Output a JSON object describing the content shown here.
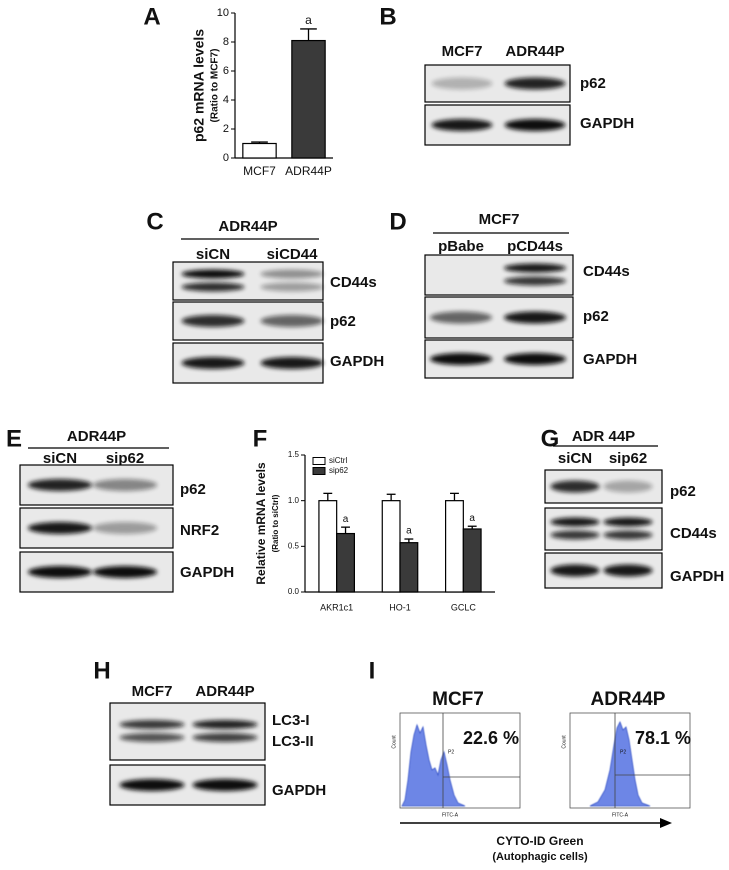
{
  "panel_labels": [
    "A",
    "B",
    "C",
    "D",
    "E",
    "F",
    "G",
    "H",
    "I"
  ],
  "chart_data": [
    {
      "type": "bar",
      "ylabel": "p62 mRNA levels",
      "ysublabel": "(Ratio to MCF7)",
      "categories": [
        "MCF7",
        "ADR44P"
      ],
      "values": [
        1,
        8.1
      ],
      "errors": [
        0.1,
        0.8
      ],
      "colors": [
        "#ffffff",
        "#3a3a3a"
      ],
      "annotations": [
        null,
        "a"
      ],
      "ylim": [
        0,
        10
      ],
      "yticks": [
        0,
        2,
        4,
        6,
        8,
        10
      ]
    },
    {
      "type": "grouped_bar",
      "ylabel": "Relative mRNA levels",
      "ysublabel": "(Ratio to siCtrl)",
      "categories": [
        "AKR1c1",
        "HO-1",
        "GCLC"
      ],
      "series": [
        {
          "name": "siCtrl",
          "color": "#ffffff",
          "values": [
            1,
            1,
            1
          ],
          "errors": [
            0.08,
            0.07,
            0.08
          ]
        },
        {
          "name": "sip62",
          "color": "#3a3a3a",
          "values": [
            0.64,
            0.54,
            0.69
          ],
          "errors": [
            0.07,
            0.04,
            0.03
          ],
          "annotations": [
            "a",
            "a",
            "a"
          ]
        }
      ],
      "ylim": [
        0,
        1.5
      ],
      "yticks": [
        {
          "value": 0,
          "label": "0.0"
        },
        {
          "value": 0.5,
          "label": "0.5"
        },
        {
          "value": 1,
          "label": "1.0"
        },
        {
          "value": 1.5,
          "label": "1.5"
        }
      ],
      "legend": "upper left"
    }
  ],
  "blots": {
    "B": {
      "lanes": [
        "MCF7",
        "ADR44P"
      ],
      "rows": [
        "p62",
        "GAPDH"
      ]
    },
    "C": {
      "group": "ADR44P",
      "lanes": [
        "siCN",
        "siCD44"
      ],
      "rows": [
        "CD44s",
        "p62",
        "GAPDH"
      ]
    },
    "D": {
      "group": "MCF7",
      "lanes": [
        "pBabe",
        "pCD44s"
      ],
      "rows": [
        "CD44s",
        "p62",
        "GAPDH"
      ]
    },
    "E": {
      "group": "ADR44P",
      "lanes": [
        "siCN",
        "sip62"
      ],
      "rows": [
        "p62",
        "NRF2",
        "GAPDH"
      ]
    },
    "G": {
      "group": "ADR 44P",
      "lanes": [
        "siCN",
        "sip62"
      ],
      "rows": [
        "p62",
        "CD44s",
        "GAPDH"
      ]
    },
    "H": {
      "lanes": [
        "MCF7",
        "ADR44P"
      ],
      "rows": [
        "LC3-I",
        "LC3-II",
        "GAPDH"
      ]
    }
  },
  "flow": {
    "panels": [
      {
        "title": "MCF7",
        "percent": "22.6 %",
        "gate": "P2"
      },
      {
        "title": "ADR44P",
        "percent": "78.1 %",
        "gate": "P2"
      }
    ],
    "y_axis": "Count",
    "x_axis": "FITC-A",
    "xlabel": "CYTO-ID Green",
    "xsublabel": "(Autophagic cells)"
  }
}
